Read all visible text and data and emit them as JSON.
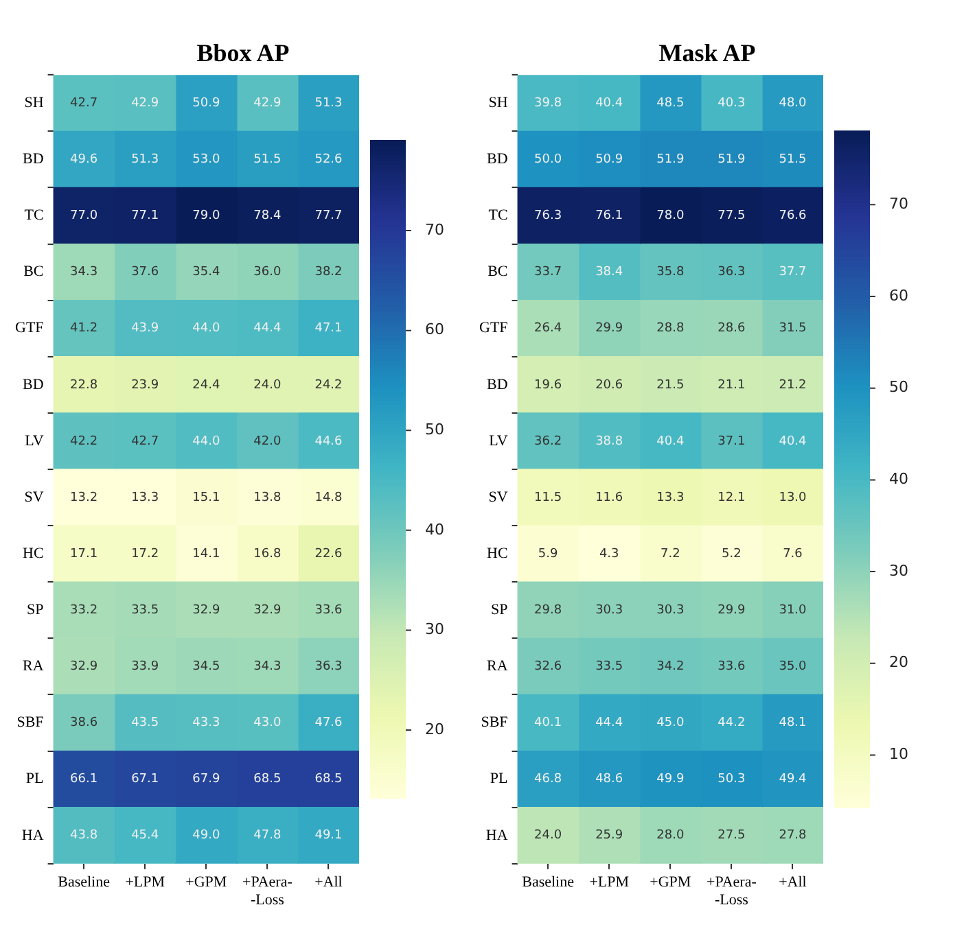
{
  "chart_data": [
    {
      "type": "heatmap",
      "title": "Bbox AP",
      "categories": [
        "Baseline",
        "+LPM",
        "+GPM",
        "+PAera-\n-Loss",
        "+All"
      ],
      "y_categories": [
        "SH",
        "BD",
        "TC",
        "BC",
        "GTF",
        "BD",
        "LV",
        "SV",
        "HC",
        "SP",
        "RA",
        "SBF",
        "PL",
        "HA"
      ],
      "cells": [
        [
          42.7,
          42.9,
          50.9,
          42.9,
          51.3
        ],
        [
          49.6,
          51.3,
          53.0,
          51.5,
          52.6
        ],
        [
          77.0,
          77.1,
          79.0,
          78.4,
          77.7
        ],
        [
          34.3,
          37.6,
          35.4,
          36.0,
          38.2
        ],
        [
          41.2,
          43.9,
          44.0,
          44.4,
          47.1
        ],
        [
          22.8,
          23.9,
          24.4,
          24.0,
          24.2
        ],
        [
          42.2,
          42.7,
          44.0,
          42.0,
          44.6
        ],
        [
          13.2,
          13.3,
          15.1,
          13.8,
          14.8
        ],
        [
          17.1,
          17.2,
          14.1,
          16.8,
          22.6
        ],
        [
          33.2,
          33.5,
          32.9,
          32.9,
          33.6
        ],
        [
          32.9,
          33.9,
          34.5,
          34.3,
          36.3
        ],
        [
          38.6,
          43.5,
          43.3,
          43.0,
          47.6
        ],
        [
          66.1,
          67.1,
          67.9,
          68.5,
          68.5
        ],
        [
          43.8,
          45.4,
          49.0,
          47.8,
          49.1
        ]
      ],
      "cell_labels": [
        [
          "42.7",
          "42.9",
          "50.9",
          "42.9",
          "51.3"
        ],
        [
          "49.6",
          "51.3",
          "53.0",
          "51.5",
          "52.6"
        ],
        [
          "77.0",
          "77.1",
          "79.0",
          "78.4",
          "77.7"
        ],
        [
          "34.3",
          "37.6",
          "35.4",
          "36.0",
          "38.2"
        ],
        [
          "41.2",
          "43.9",
          "44.0",
          "44.4",
          "47.1"
        ],
        [
          "22.8",
          "23.9",
          "24.4",
          "24.0",
          "24.2"
        ],
        [
          "42.2",
          "42.7",
          "44.0",
          "42.0",
          "44.6"
        ],
        [
          "13.2",
          "13.3",
          "15.1",
          "13.8",
          "14.8"
        ],
        [
          "17.1",
          "17.2",
          "14.1",
          "16.8",
          "22.6"
        ],
        [
          "33.2",
          "33.5",
          "32.9",
          "32.9",
          "33.6"
        ],
        [
          "32.9",
          "33.9",
          "34.5",
          "34.3",
          "36.3"
        ],
        [
          "38.6",
          "43.5",
          "43.3",
          "43.0",
          "47.6"
        ],
        [
          "66.1",
          "67.1",
          "67.9",
          "68.5",
          "68.5"
        ],
        [
          "43.8",
          "45.4",
          "49.0",
          "47.8",
          "49.1"
        ]
      ],
      "clim": [
        13.2,
        79.0
      ],
      "cticks": [
        20,
        30,
        40,
        50,
        60,
        70
      ]
    },
    {
      "type": "heatmap",
      "title": "Mask AP",
      "categories": [
        "Baseline",
        "+LPM",
        "+GPM",
        "+PAera-\n-Loss",
        "+All"
      ],
      "y_categories": [
        "SH",
        "BD",
        "TC",
        "BC",
        "GTF",
        "BD",
        "LV",
        "SV",
        "HC",
        "SP",
        "RA",
        "SBF",
        "PL",
        "HA"
      ],
      "cells": [
        [
          39.8,
          40.4,
          48.5,
          40.3,
          48.0
        ],
        [
          50.0,
          50.9,
          51.9,
          51.9,
          51.5
        ],
        [
          76.3,
          76.1,
          78.0,
          77.5,
          76.6
        ],
        [
          33.7,
          38.4,
          35.8,
          36.3,
          37.7
        ],
        [
          26.4,
          29.9,
          28.8,
          28.6,
          31.5
        ],
        [
          19.6,
          20.6,
          21.5,
          21.1,
          21.2
        ],
        [
          36.2,
          38.8,
          40.4,
          37.1,
          40.4
        ],
        [
          11.5,
          11.6,
          13.3,
          12.1,
          13.0
        ],
        [
          5.9,
          4.3,
          7.2,
          5.2,
          7.6
        ],
        [
          29.8,
          30.3,
          30.3,
          29.9,
          31.0
        ],
        [
          32.6,
          33.5,
          34.2,
          33.6,
          35.0
        ],
        [
          40.1,
          44.4,
          45.0,
          44.2,
          48.1
        ],
        [
          46.8,
          48.6,
          49.9,
          50.3,
          49.4
        ],
        [
          24.0,
          25.9,
          28.0,
          27.5,
          27.8
        ]
      ],
      "cell_labels": [
        [
          "39.8",
          "40.4",
          "48.5",
          "40.3",
          "48.0"
        ],
        [
          "50.0",
          "50.9",
          "51.9",
          "51.9",
          "51.5"
        ],
        [
          "76.3",
          "76.1",
          "78.0",
          "77.5",
          "76.6"
        ],
        [
          "33.7",
          "38.4",
          "35.8",
          "36.3",
          "37.7"
        ],
        [
          "26.4",
          "29.9",
          "28.8",
          "28.6",
          "31.5"
        ],
        [
          "19.6",
          "20.6",
          "21.5",
          "21.1",
          "21.2"
        ],
        [
          "36.2",
          "38.8",
          "40.4",
          "37.1",
          "40.4"
        ],
        [
          "11.5",
          "11.6",
          "13.3",
          "12.1",
          "13.0"
        ],
        [
          "5.9",
          "4.3",
          "7.2",
          "5.2",
          "7.6"
        ],
        [
          "29.8",
          "30.3",
          "30.3",
          "29.9",
          "31.0"
        ],
        [
          "32.6",
          "33.5",
          "34.2",
          "33.6",
          "35.0"
        ],
        [
          "40.1",
          "44.4",
          "45.0",
          "44.2",
          "48.1"
        ],
        [
          "46.8",
          "48.6",
          "49.9",
          "50.3",
          "49.4"
        ],
        [
          "24.0",
          "25.9",
          "28.0",
          "27.5",
          "27.8"
        ]
      ],
      "clim": [
        4.3,
        78.0
      ],
      "cticks": [
        10,
        20,
        30,
        40,
        50,
        60,
        70
      ]
    }
  ]
}
